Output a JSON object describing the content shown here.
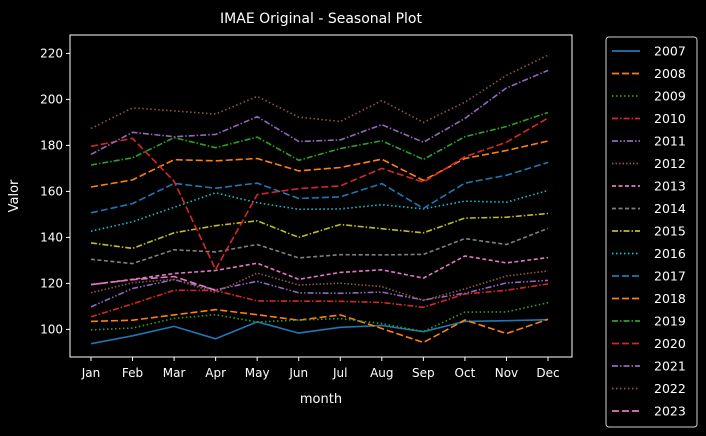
{
  "chart_data": {
    "type": "line",
    "title": "IMAE Original - Seasonal Plot",
    "xlabel": "month",
    "ylabel": "Valor",
    "categories": [
      "Jan",
      "Feb",
      "Mar",
      "Apr",
      "May",
      "Jun",
      "Jul",
      "Aug",
      "Sep",
      "Oct",
      "Nov",
      "Dec"
    ],
    "ylim": [
      88,
      228
    ],
    "yticks": [
      100,
      120,
      140,
      160,
      180,
      200,
      220
    ],
    "grid": false,
    "legend_position": "right",
    "series": [
      {
        "name": "2007",
        "color": "#1f77b4",
        "dash": "solid",
        "values": [
          93.8,
          97.2,
          101.3,
          95.9,
          103.3,
          98.4,
          100.9,
          101.7,
          99.0,
          103.5,
          103.8,
          104.2
        ]
      },
      {
        "name": "2008",
        "color": "#ff7f0e",
        "dash": "dashed",
        "values": [
          103.5,
          104.0,
          106.3,
          108.6,
          106.4,
          104.0,
          106.3,
          100.4,
          94.3,
          104.1,
          98.2,
          104.4
        ]
      },
      {
        "name": "2009",
        "color": "#2ca02c",
        "dash": "dotted",
        "values": [
          99.8,
          100.6,
          104.8,
          106.4,
          103.2,
          104.1,
          104.7,
          102.5,
          99.1,
          107.5,
          107.6,
          111.6
        ]
      },
      {
        "name": "2010",
        "color": "#d62728",
        "dash": "dashdot",
        "values": [
          105.5,
          111.1,
          117.0,
          116.9,
          112.4,
          112.3,
          112.2,
          111.7,
          109.6,
          115.4,
          117.0,
          119.8
        ]
      },
      {
        "name": "2011",
        "color": "#9467bd",
        "dash": "dashdotdot",
        "values": [
          109.8,
          117.8,
          121.6,
          117.2,
          120.9,
          115.9,
          115.7,
          116.2,
          112.8,
          115.7,
          120.2,
          121.3
        ]
      },
      {
        "name": "2012",
        "color": "#8c564b",
        "dash": "dotted2",
        "values": [
          115.9,
          120.3,
          121.8,
          116.0,
          124.5,
          119.3,
          120.1,
          118.6,
          112.6,
          117.6,
          123.2,
          125.4
        ]
      },
      {
        "name": "2013",
        "color": "#e377c2",
        "dash": "dashed2",
        "values": [
          119.5,
          121.8,
          124.3,
          125.6,
          128.8,
          121.8,
          124.8,
          125.9,
          122.3,
          131.9,
          128.9,
          131.2
        ]
      },
      {
        "name": "2014",
        "color": "#7f7f7f",
        "dash": "dashed2",
        "values": [
          130.5,
          128.6,
          134.6,
          133.7,
          136.9,
          131.1,
          132.5,
          132.4,
          132.6,
          139.5,
          136.9,
          143.9
        ]
      },
      {
        "name": "2015",
        "color": "#bcbd22",
        "dash": "dashdot",
        "values": [
          137.6,
          135.2,
          142.0,
          145.1,
          147.2,
          140.0,
          145.6,
          143.8,
          142.0,
          148.4,
          148.8,
          150.4
        ]
      },
      {
        "name": "2016",
        "color": "#17becf",
        "dash": "dotted",
        "values": [
          142.7,
          146.8,
          153.1,
          159.4,
          155.1,
          152.2,
          152.4,
          154.2,
          152.4,
          155.8,
          155.3,
          160.4
        ]
      },
      {
        "name": "2017",
        "color": "#1f77b4",
        "dash": "dashed",
        "values": [
          150.7,
          154.7,
          163.5,
          161.4,
          163.6,
          156.9,
          157.6,
          163.4,
          152.6,
          163.6,
          167.0,
          172.6
        ]
      },
      {
        "name": "2018",
        "color": "#ff7f0e",
        "dash": "dashed",
        "values": [
          161.9,
          165.0,
          173.8,
          173.3,
          174.3,
          168.9,
          170.4,
          174.0,
          164.8,
          174.3,
          177.8,
          181.9
        ]
      },
      {
        "name": "2019",
        "color": "#2ca02c",
        "dash": "dashdot",
        "values": [
          171.5,
          174.6,
          183.4,
          179.0,
          183.6,
          173.5,
          178.6,
          182.0,
          173.9,
          183.8,
          188.2,
          194.3
        ]
      },
      {
        "name": "2020",
        "color": "#d62728",
        "dash": "dashed",
        "values": [
          179.6,
          183.1,
          164.4,
          126.0,
          158.6,
          161.2,
          162.4,
          170.0,
          164.0,
          175.1,
          181.4,
          191.9
        ]
      },
      {
        "name": "2021",
        "color": "#9467bd",
        "dash": "dashdot",
        "values": [
          176.1,
          185.7,
          183.8,
          184.8,
          192.5,
          181.7,
          182.4,
          189.0,
          181.4,
          191.7,
          205.0,
          212.6
        ]
      },
      {
        "name": "2022",
        "color": "#8c564b",
        "dash": "dotted",
        "values": [
          187.4,
          196.3,
          195.0,
          193.6,
          201.3,
          192.3,
          190.4,
          199.5,
          190.0,
          198.8,
          210.5,
          219.2
        ]
      },
      {
        "name": "2023",
        "color": "#e377c2",
        "dash": "dashed",
        "values": [
          119.5,
          121.6,
          123.0,
          117.0,
          null,
          null,
          null,
          null,
          null,
          null,
          null,
          null
        ]
      }
    ]
  }
}
